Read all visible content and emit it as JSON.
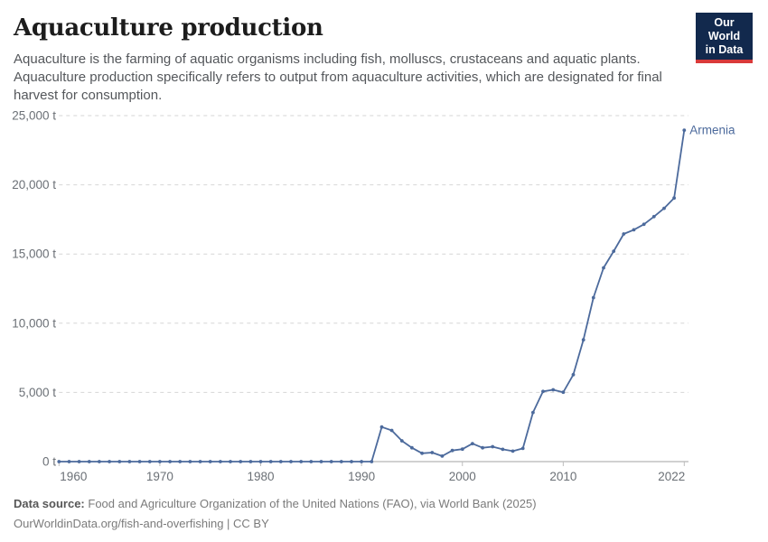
{
  "header": {
    "title": "Aquaculture production",
    "subtitle": "Aquaculture is the farming of aquatic organisms including fish, molluscs, crustaceans and aquatic plants. Aquaculture production specifically refers to output from aquaculture activities, which are designated for final harvest for consumption.",
    "logo": {
      "line1": "Our World",
      "line2": "in Data",
      "bg_color": "#12294d",
      "stripe_color": "#d93a3a"
    }
  },
  "chart_data": {
    "type": "line",
    "title": "Aquaculture production",
    "unit": "tonnes",
    "grid": "horizontal-dashed",
    "legend_position": "end-of-line-label",
    "xlim": [
      1960,
      2022
    ],
    "ylim": [
      0,
      25000
    ],
    "x_ticks": [
      1960,
      1970,
      1980,
      1990,
      2000,
      2010,
      2022
    ],
    "y_ticks": [
      0,
      5000,
      10000,
      15000,
      20000,
      25000
    ],
    "y_tick_labels": [
      "0 t",
      "5,000 t",
      "10,000 t",
      "15,000 t",
      "20,000 t",
      "25,000 t"
    ],
    "series": [
      {
        "name": "Armenia",
        "color": "#4c6a9c",
        "x": [
          1960,
          1961,
          1962,
          1963,
          1964,
          1965,
          1966,
          1967,
          1968,
          1969,
          1970,
          1971,
          1972,
          1973,
          1974,
          1975,
          1976,
          1977,
          1978,
          1979,
          1980,
          1981,
          1982,
          1983,
          1984,
          1985,
          1986,
          1987,
          1988,
          1989,
          1990,
          1991,
          1992,
          1993,
          1994,
          1995,
          1996,
          1997,
          1998,
          1999,
          2000,
          2001,
          2002,
          2003,
          2004,
          2005,
          2006,
          2007,
          2008,
          2009,
          2010,
          2011,
          2012,
          2013,
          2014,
          2015,
          2016,
          2017,
          2018,
          2019,
          2020,
          2021,
          2022
        ],
        "values": [
          0,
          0,
          0,
          0,
          0,
          0,
          0,
          0,
          0,
          0,
          0,
          0,
          0,
          0,
          0,
          0,
          0,
          0,
          0,
          0,
          0,
          0,
          0,
          0,
          0,
          0,
          0,
          0,
          0,
          0,
          0,
          0,
          2500,
          2250,
          1500,
          1000,
          600,
          650,
          400,
          800,
          900,
          1300,
          1000,
          1080,
          890,
          760,
          950,
          3550,
          5070,
          5190,
          5010,
          6280,
          8800,
          11850,
          14000,
          15200,
          16450,
          16750,
          17150,
          17700,
          18300,
          19050,
          23950
        ]
      }
    ],
    "colors": {
      "line": "#4c6a9c",
      "gridline": "#d6d6d6",
      "axis_line": "#a3a3a3",
      "tick_text": "#6b7076"
    }
  },
  "footer": {
    "source_label": "Data source:",
    "source_text": "Food and Agriculture Organization of the United Nations (FAO), via World Bank (2025)",
    "link_text": "OurWorldinData.org/fish-and-overfishing | CC BY"
  }
}
